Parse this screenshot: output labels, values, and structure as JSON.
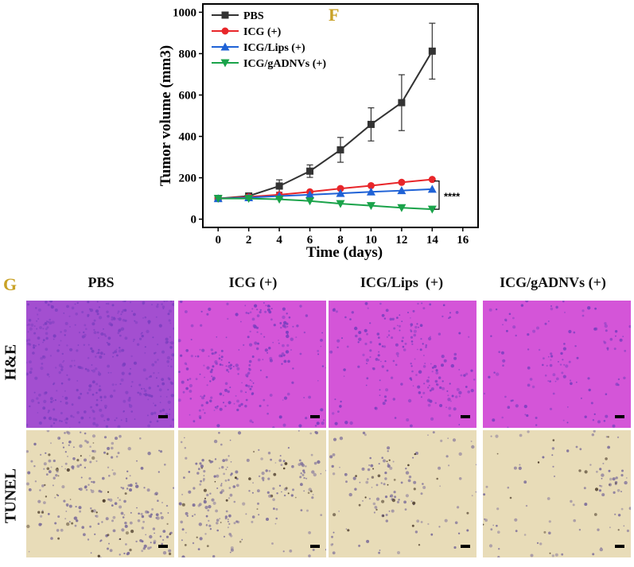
{
  "panel_f": {
    "letter": "F",
    "chart_data": {
      "type": "line",
      "xlabel": "Time (days)",
      "ylabel": "Tumor volume (mm3)",
      "xlim": [
        -1,
        17
      ],
      "ylim": [
        -40,
        1040
      ],
      "xticks": [
        0,
        2,
        4,
        6,
        8,
        10,
        12,
        14,
        16
      ],
      "yticks": [
        0,
        200,
        400,
        600,
        800,
        1000
      ],
      "legend_position": "top-left",
      "significance_label": "****",
      "x": [
        0,
        2,
        4,
        6,
        8,
        10,
        12,
        14
      ],
      "series": [
        {
          "name": "PBS",
          "color": "#333333",
          "marker": "square",
          "values": [
            100,
            112,
            160,
            232,
            335,
            458,
            563,
            812
          ],
          "errors": [
            10,
            12,
            30,
            30,
            60,
            80,
            135,
            135
          ]
        },
        {
          "name": "ICG (+)",
          "color": "#e8262a",
          "marker": "circle",
          "values": [
            100,
            108,
            118,
            132,
            148,
            162,
            178,
            192
          ],
          "errors": [
            5,
            5,
            5,
            6,
            6,
            6,
            6,
            6
          ]
        },
        {
          "name": "ICG/Lips (+)",
          "color": "#1f62d6",
          "marker": "triangle-up",
          "values": [
            100,
            104,
            112,
            118,
            125,
            132,
            138,
            145
          ],
          "errors": [
            4,
            4,
            4,
            5,
            5,
            5,
            5,
            5
          ]
        },
        {
          "name": "ICG/gADNVs (+)",
          "color": "#1aa34a",
          "marker": "triangle-down",
          "values": [
            100,
            100,
            96,
            88,
            75,
            65,
            55,
            48
          ],
          "errors": [
            4,
            4,
            4,
            4,
            4,
            4,
            4,
            4
          ]
        }
      ]
    }
  },
  "panel_g": {
    "letter": "G",
    "columns": [
      "PBS",
      "ICG (+)",
      "ICG/Lips  (+)",
      "ICG/gADNVs (+)"
    ],
    "rows": [
      "H&E",
      "TUNEL"
    ],
    "colors": {
      "he_base": "#d455d8",
      "he_dense": "#7a3fbf",
      "tunel_base": "#e8dcb8",
      "tunel_dense": "#7d6f9a"
    }
  }
}
